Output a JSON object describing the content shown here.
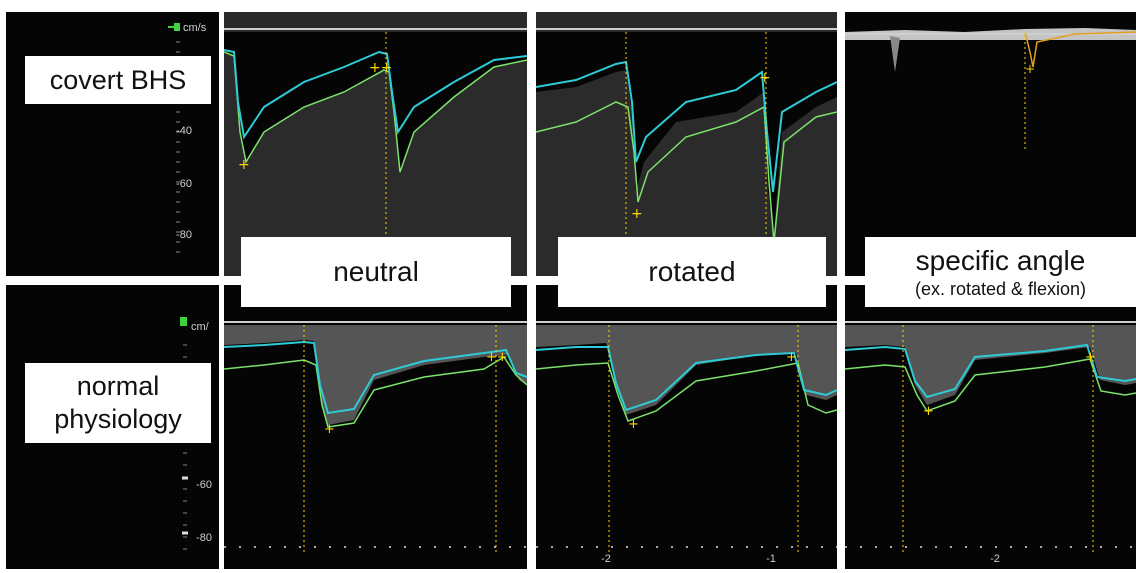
{
  "row_labels": {
    "top": "covert BHS",
    "bottom_line1": "normal",
    "bottom_line2": "physiology"
  },
  "conditions": {
    "neutral": "neutral",
    "rotated": "rotated",
    "specific": "specific angle",
    "specific_sub": "(ex. rotated & flexion)"
  },
  "scales": {
    "top_unit": "cm/s",
    "top_ticks": [
      "-40",
      "-60",
      "-80"
    ],
    "bottom_unit": "cm/",
    "bottom_ticks": [
      "-60",
      "-80"
    ]
  },
  "time_axis": {
    "rotated_ticks": [
      "-2",
      "-1"
    ],
    "specific_ticks": [
      "-2"
    ]
  },
  "colors": {
    "trace_cyan": "#2ecbd6",
    "trace_green": "#7be36a",
    "marker_yellow": "#ffd800",
    "scale_green": "#3fd43f",
    "spectrum_white": "#e6e6e6"
  }
}
